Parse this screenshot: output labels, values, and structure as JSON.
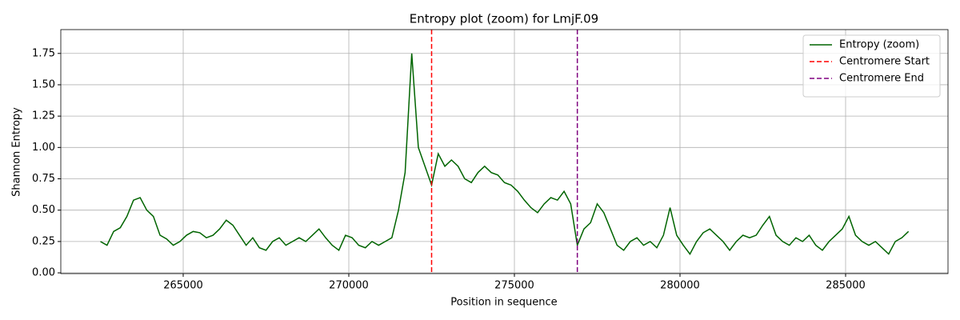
{
  "chart_data": {
    "type": "line",
    "title": "Entropy plot (zoom) for LmjF.09",
    "xlabel": "Position in sequence",
    "ylabel": "Shannon Entropy",
    "xlim": [
      261304,
      288092
    ],
    "ylim": [
      -0.006,
      1.94
    ],
    "xticks": [
      265000,
      270000,
      275000,
      280000,
      285000
    ],
    "yticks": [
      {
        "value": 0,
        "label": "0.00"
      },
      {
        "value": 0.25,
        "label": "0.25"
      },
      {
        "value": 0.5,
        "label": "0.50"
      },
      {
        "value": 0.75,
        "label": "0.75"
      },
      {
        "value": 1,
        "label": "1.00"
      },
      {
        "value": 1.25,
        "label": "1.25"
      },
      {
        "value": 1.5,
        "label": "1.50"
      },
      {
        "value": 1.75,
        "label": "1.75"
      }
    ],
    "grid": true,
    "legend": "upper right",
    "x": [
      262500,
      262700,
      262900,
      263100,
      263300,
      263500,
      263700,
      263900,
      264100,
      264300,
      264500,
      264700,
      264900,
      265100,
      265300,
      265500,
      265700,
      265900,
      266100,
      266300,
      266500,
      266700,
      266900,
      267100,
      267300,
      267500,
      267700,
      267900,
      268100,
      268300,
      268500,
      268700,
      268900,
      269100,
      269300,
      269500,
      269700,
      269900,
      270100,
      270300,
      270500,
      270700,
      270900,
      271100,
      271300,
      271500,
      271700,
      271900,
      272100,
      272300,
      272500,
      272700,
      272900,
      273100,
      273300,
      273500,
      273700,
      273900,
      274100,
      274300,
      274500,
      274700,
      274900,
      275100,
      275300,
      275500,
      275700,
      275900,
      276100,
      276300,
      276500,
      276700,
      276900,
      277100,
      277300,
      277500,
      277700,
      277900,
      278100,
      278300,
      278500,
      278700,
      278900,
      279100,
      279300,
      279500,
      279700,
      279900,
      280100,
      280300,
      280500,
      280700,
      280900,
      281100,
      281300,
      281500,
      281700,
      281900,
      282100,
      282300,
      282500,
      282700,
      282900,
      283100,
      283300,
      283500,
      283700,
      283900,
      284100,
      284300,
      284500,
      284700,
      284900,
      285100,
      285300,
      285500,
      285700,
      285900,
      286100,
      286300,
      286500,
      286700,
      286900
    ],
    "series": [
      {
        "name": "Entropy (zoom)",
        "color": "#006400",
        "values": [
          0.25,
          0.22,
          0.33,
          0.36,
          0.45,
          0.58,
          0.6,
          0.5,
          0.45,
          0.3,
          0.27,
          0.22,
          0.25,
          0.3,
          0.33,
          0.32,
          0.28,
          0.3,
          0.35,
          0.42,
          0.38,
          0.3,
          0.22,
          0.28,
          0.2,
          0.18,
          0.25,
          0.28,
          0.22,
          0.25,
          0.28,
          0.25,
          0.3,
          0.35,
          0.28,
          0.22,
          0.18,
          0.3,
          0.28,
          0.22,
          0.2,
          0.25,
          0.22,
          0.25,
          0.28,
          0.5,
          0.8,
          1.75,
          1.0,
          0.85,
          0.7,
          0.95,
          0.85,
          0.9,
          0.85,
          0.75,
          0.72,
          0.8,
          0.85,
          0.8,
          0.78,
          0.72,
          0.7,
          0.65,
          0.58,
          0.52,
          0.48,
          0.55,
          0.6,
          0.58,
          0.65,
          0.55,
          0.22,
          0.35,
          0.4,
          0.55,
          0.48,
          0.35,
          0.22,
          0.18,
          0.25,
          0.28,
          0.22,
          0.25,
          0.2,
          0.3,
          0.52,
          0.3,
          0.22,
          0.15,
          0.25,
          0.32,
          0.35,
          0.3,
          0.25,
          0.18,
          0.25,
          0.3,
          0.28,
          0.3,
          0.38,
          0.45,
          0.3,
          0.25,
          0.22,
          0.28,
          0.25,
          0.3,
          0.22,
          0.18,
          0.25,
          0.3,
          0.35,
          0.45,
          0.3,
          0.25,
          0.22,
          0.25,
          0.2,
          0.15,
          0.25,
          0.28,
          0.33
        ]
      }
    ],
    "vlines": [
      {
        "name": "Centromere Start",
        "color": "#ff0000",
        "x": 272500
      },
      {
        "name": "Centromere End",
        "color": "#800080",
        "x": 276900
      }
    ]
  }
}
